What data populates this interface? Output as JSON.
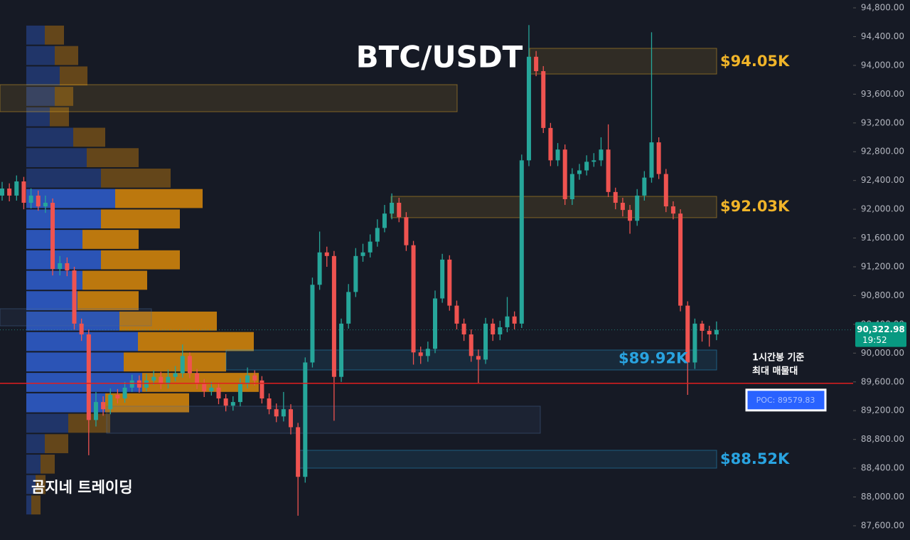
{
  "chart_data": {
    "type": "candlestick",
    "title": "BTC/USDT",
    "watermark": "곰지네 트레이딩",
    "ylim": [
      87402,
      94909
    ],
    "yticks": [
      {
        "value": 94800,
        "label": "94,800.00"
      },
      {
        "value": 94400,
        "label": "94,400.00"
      },
      {
        "value": 94000,
        "label": "94,000.00"
      },
      {
        "value": 93600,
        "label": "93,600.00"
      },
      {
        "value": 93200,
        "label": "93,200.00"
      },
      {
        "value": 92800,
        "label": "92,800.00"
      },
      {
        "value": 92400,
        "label": "92,400.00"
      },
      {
        "value": 92000,
        "label": "92,000.00"
      },
      {
        "value": 91600,
        "label": "91,600.00"
      },
      {
        "value": 91200,
        "label": "91,200.00"
      },
      {
        "value": 90800,
        "label": "90,800.00"
      },
      {
        "value": 90400,
        "label": "90,400.00"
      },
      {
        "value": 90000,
        "label": "90,000.00"
      },
      {
        "value": 89600,
        "label": "89,600.00"
      },
      {
        "value": 89200,
        "label": "89,200.00"
      },
      {
        "value": 88800,
        "label": "88,800.00"
      },
      {
        "value": 88400,
        "label": "88,400.00"
      },
      {
        "value": 88000,
        "label": "88,000.00"
      },
      {
        "value": 87600,
        "label": "87,600.00"
      }
    ],
    "up_color": "#26a69a",
    "down_color": "#ef5350",
    "open": [
      92190,
      92288,
      92190,
      92387,
      92090,
      92190,
      92040,
      92090,
      91170,
      91250,
      91150,
      90410,
      90260,
      89070,
      89320,
      89220,
      89420,
      89370,
      89520,
      89620,
      89520,
      89620,
      89670,
      89570,
      89670,
      89720,
      89960,
      89720,
      89570,
      89470,
      89520,
      89370,
      89270,
      89320,
      89570,
      89690,
      89620,
      89370,
      89220,
      89120,
      89220,
      88970,
      88280,
      89870,
      90950,
      91400,
      91350,
      89670,
      90410,
      90850,
      91350,
      91400,
      91550,
      91740,
      91940,
      92090,
      91890,
      91500,
      90010,
      89960,
      90060,
      90760,
      91300,
      90660,
      90410,
      90260,
      89960,
      89910,
      90410,
      90260,
      90360,
      90510,
      90410,
      92680,
      94120,
      93920,
      93130,
      92680,
      92830,
      92140,
      92490,
      92540,
      92660,
      92680,
      92830,
      92240,
      92090,
      91990,
      91840,
      92190,
      92440,
      92930,
      92490,
      92040,
      91940,
      90660,
      89870,
      90410,
      90310,
      90260
    ],
    "high": [
      92380,
      92360,
      92470,
      92450,
      92290,
      92260,
      92190,
      92150,
      91350,
      91330,
      91200,
      90480,
      90330,
      89460,
      89400,
      89510,
      89500,
      89600,
      89700,
      89690,
      89710,
      89760,
      89740,
      89770,
      89820,
      90120,
      90010,
      89780,
      89640,
      89600,
      89590,
      89430,
      89400,
      89650,
      89800,
      89760,
      89680,
      89440,
      89300,
      89460,
      89290,
      89030,
      89940,
      91050,
      91690,
      91480,
      91420,
      90480,
      90960,
      91460,
      91520,
      91650,
      91860,
      92060,
      92220,
      92160,
      91960,
      91560,
      90090,
      90160,
      90870,
      91380,
      91360,
      90730,
      90480,
      90330,
      90050,
      90490,
      90480,
      90450,
      90780,
      90580,
      92760,
      94560,
      94200,
      93990,
      93200,
      92920,
      92900,
      92570,
      92630,
      92750,
      92780,
      93000,
      93180,
      92300,
      92160,
      92060,
      92280,
      92530,
      94460,
      93000,
      92560,
      92110,
      92000,
      90720,
      90480,
      90450,
      90380,
      90440
    ],
    "low": [
      92120,
      92110,
      92120,
      92000,
      92010,
      91980,
      91950,
      91080,
      91080,
      91070,
      90330,
      90170,
      88580,
      88980,
      89130,
      89150,
      89300,
      89310,
      89460,
      89450,
      89470,
      89560,
      89500,
      89510,
      89610,
      89660,
      89650,
      89500,
      89390,
      89410,
      89290,
      89190,
      89200,
      89260,
      89510,
      89550,
      89300,
      89150,
      89040,
      89050,
      88870,
      87740,
      88200,
      89800,
      90880,
      91200,
      89060,
      89600,
      90340,
      90780,
      91270,
      91330,
      91480,
      91680,
      91860,
      91820,
      91420,
      89840,
      89850,
      89880,
      90000,
      90700,
      90590,
      90330,
      90170,
      89880,
      89580,
      89850,
      90170,
      90180,
      90290,
      90330,
      90350,
      92600,
      93850,
      93060,
      92600,
      92600,
      92060,
      92060,
      92410,
      92470,
      92590,
      92600,
      92170,
      92000,
      91900,
      91660,
      91770,
      92120,
      92370,
      92420,
      91960,
      91860,
      90580,
      89420,
      89780,
      90160,
      90090,
      90180
    ],
    "close": [
      92288,
      92190,
      92387,
      92090,
      92190,
      92040,
      92090,
      91170,
      91250,
      91150,
      90410,
      90260,
      89070,
      89320,
      89220,
      89420,
      89370,
      89520,
      89620,
      89520,
      89620,
      89670,
      89570,
      89670,
      89720,
      89960,
      89720,
      89570,
      89470,
      89520,
      89370,
      89270,
      89320,
      89570,
      89690,
      89620,
      89370,
      89220,
      89120,
      89220,
      88970,
      88280,
      89870,
      90950,
      91400,
      91350,
      89670,
      90410,
      90850,
      91350,
      91400,
      91550,
      91740,
      91940,
      92090,
      91890,
      91500,
      90010,
      89960,
      90060,
      90760,
      91300,
      90660,
      90410,
      90260,
      89960,
      89910,
      90410,
      90260,
      90360,
      90510,
      90410,
      92680,
      94120,
      93920,
      93130,
      92680,
      92830,
      92140,
      92490,
      92540,
      92660,
      92680,
      92830,
      92240,
      92090,
      91990,
      91840,
      92190,
      92440,
      92930,
      92490,
      92040,
      91940,
      90660,
      89870,
      90410,
      90310,
      90260,
      90322.98
    ],
    "last_price": {
      "value": 90322.98,
      "label": "90,322.98",
      "time": "19:52"
    },
    "poc": {
      "value": 89579.83,
      "label": "POC: 89579.83",
      "note": [
        "1시간봉 기준",
        "최대 매물대"
      ]
    },
    "zones": [
      {
        "label": "$94.05K",
        "value": 94050,
        "top": 94237,
        "bottom": 93880,
        "color": "#f0b429"
      },
      {
        "top": 93732,
        "bottom": 93356,
        "color": "#f0b429"
      },
      {
        "label": "$92.03K",
        "value": 92030,
        "top": 92179,
        "bottom": 91883,
        "color": "#f0b429"
      },
      {
        "top": 90617,
        "bottom": 90379,
        "color": "#4a6a9a"
      },
      {
        "label": "$89.92K",
        "value": 89920,
        "top": 90043,
        "bottom": 89766,
        "color": "#29a3e0"
      },
      {
        "top": 89262,
        "bottom": 88886,
        "color": "#4a6a9a"
      },
      {
        "label": "$88.52K",
        "value": 88520,
        "top": 88649,
        "bottom": 88401,
        "color": "#29a3e0"
      }
    ],
    "volume_profile": {
      "bins": [
        94563,
        94279,
        93995,
        93711,
        93427,
        93143,
        92859,
        92575,
        92291,
        92007,
        91723,
        91439,
        91155,
        90871,
        90587,
        90303,
        90019,
        89735,
        89451,
        89167,
        88883,
        88599,
        88315,
        88031,
        87747
      ],
      "buy": [
        26,
        40,
        47,
        40,
        33,
        66,
        85,
        105,
        125,
        105,
        79,
        105,
        79,
        72,
        131,
        157,
        137,
        163,
        111,
        59,
        26,
        20,
        13,
        7
      ],
      "sell": [
        27,
        33,
        39,
        26,
        27,
        45,
        73,
        98,
        123,
        111,
        79,
        111,
        91,
        86,
        137,
        163,
        144,
        164,
        118,
        59,
        33,
        20,
        14,
        13
      ],
      "buy_color": "#2f5fd0",
      "sell_color": "#d98a0a"
    }
  }
}
